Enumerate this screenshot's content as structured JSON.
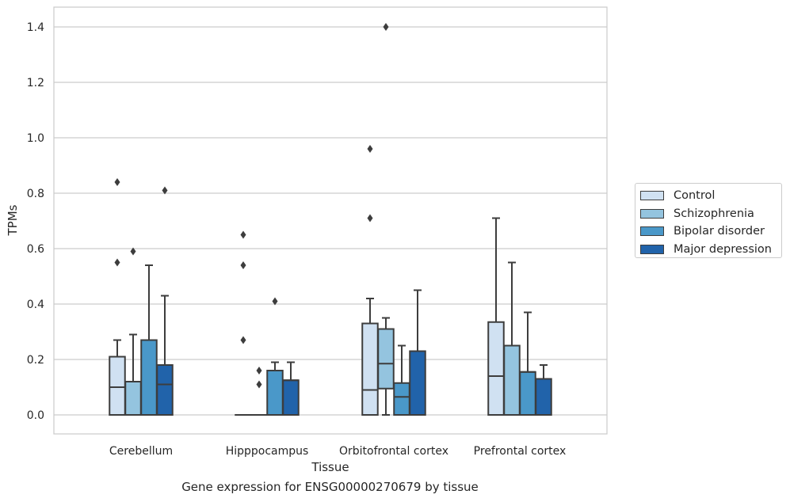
{
  "caption": "Gene expression for ENSG00000270679 by tissue",
  "chart_data": {
    "type": "box",
    "title": "",
    "xlabel": "Tissue",
    "ylabel": "TPMs",
    "ylim": [
      -0.066,
      1.47
    ],
    "yticks": [
      "0.0",
      "0.2",
      "0.4",
      "0.6",
      "0.8",
      "1.0",
      "1.2",
      "1.4"
    ],
    "grid": true,
    "legend_position": "right",
    "categories": [
      "Cerebellum",
      "Hipppocampus",
      "Orbitofrontal cortex",
      "Prefrontal cortex"
    ],
    "series": [
      {
        "name": "Control",
        "color": "#d0e1f2",
        "boxes": [
          {
            "whisker_low": 0.0,
            "q1": 0.0,
            "median": 0.1,
            "q3": 0.21,
            "whisker_high": 0.27,
            "outliers": [
              0.55,
              0.84
            ]
          },
          {
            "whisker_low": 0.0,
            "q1": 0.0,
            "median": 0.0,
            "q3": 0.0,
            "whisker_high": 0.0,
            "outliers": [
              0.27,
              0.54,
              0.65
            ]
          },
          {
            "whisker_low": 0.0,
            "q1": 0.0,
            "median": 0.09,
            "q3": 0.33,
            "whisker_high": 0.42,
            "outliers": [
              0.71,
              0.96
            ]
          },
          {
            "whisker_low": 0.0,
            "q1": 0.0,
            "median": 0.14,
            "q3": 0.335,
            "whisker_high": 0.71,
            "outliers": []
          }
        ]
      },
      {
        "name": "Schizophrenia",
        "color": "#94c4df",
        "boxes": [
          {
            "whisker_low": 0.0,
            "q1": 0.0,
            "median": 0.12,
            "q3": 0.12,
            "whisker_high": 0.29,
            "outliers": [
              0.59
            ]
          },
          {
            "whisker_low": 0.0,
            "q1": 0.0,
            "median": 0.0,
            "q3": 0.0,
            "whisker_high": 0.0,
            "outliers": [
              0.11,
              0.16
            ]
          },
          {
            "whisker_low": 0.0,
            "q1": 0.095,
            "median": 0.185,
            "q3": 0.31,
            "whisker_high": 0.35,
            "outliers": [
              1.4
            ]
          },
          {
            "whisker_low": 0.0,
            "q1": 0.0,
            "median": 0.25,
            "q3": 0.25,
            "whisker_high": 0.55,
            "outliers": []
          }
        ]
      },
      {
        "name": "Bipolar disorder",
        "color": "#4a98c9",
        "boxes": [
          {
            "whisker_low": 0.0,
            "q1": 0.0,
            "median": 0.27,
            "q3": 0.27,
            "whisker_high": 0.54,
            "outliers": []
          },
          {
            "whisker_low": 0.0,
            "q1": 0.0,
            "median": 0.16,
            "q3": 0.16,
            "whisker_high": 0.19,
            "outliers": [
              0.41
            ]
          },
          {
            "whisker_low": 0.0,
            "q1": 0.0,
            "median": 0.065,
            "q3": 0.115,
            "whisker_high": 0.25,
            "outliers": []
          },
          {
            "whisker_low": 0.0,
            "q1": 0.0,
            "median": 0.155,
            "q3": 0.155,
            "whisker_high": 0.37,
            "outliers": []
          }
        ]
      },
      {
        "name": "Major depression",
        "color": "#2163aa",
        "boxes": [
          {
            "whisker_low": 0.0,
            "q1": 0.0,
            "median": 0.11,
            "q3": 0.18,
            "whisker_high": 0.43,
            "outliers": [
              0.81
            ]
          },
          {
            "whisker_low": 0.0,
            "q1": 0.0,
            "median": 0.125,
            "q3": 0.125,
            "whisker_high": 0.19,
            "outliers": []
          },
          {
            "whisker_low": 0.0,
            "q1": 0.0,
            "median": 0.23,
            "q3": 0.23,
            "whisker_high": 0.45,
            "outliers": []
          },
          {
            "whisker_low": 0.0,
            "q1": 0.0,
            "median": 0.13,
            "q3": 0.13,
            "whisker_high": 0.18,
            "outliers": []
          }
        ]
      }
    ]
  }
}
